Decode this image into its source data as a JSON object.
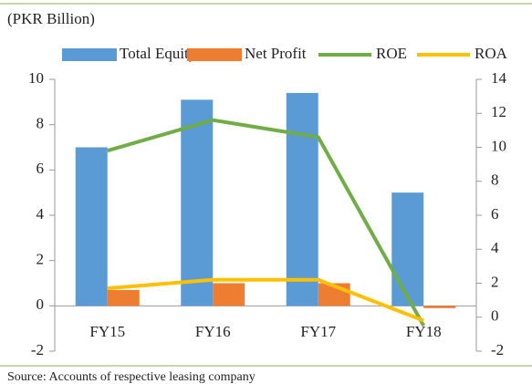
{
  "chart_data": {
    "type": "bar_line",
    "unit_label": "(PKR Billion)",
    "source": "Source:  Accounts  of respective  leasing  company",
    "categories": [
      "FY15",
      "FY16",
      "FY17",
      "FY18"
    ],
    "series": [
      {
        "name": "Total Equity",
        "type": "bar",
        "color": "#5b9bd5",
        "values": [
          7.0,
          9.1,
          9.4,
          5.0
        ]
      },
      {
        "name": "Net Profit",
        "type": "bar",
        "color": "#ed7d31",
        "values": [
          0.7,
          1.0,
          1.0,
          -0.1
        ]
      },
      {
        "name": "ROE",
        "type": "line",
        "axis": "y2",
        "color": "#70ad47",
        "values": [
          9.8,
          11.6,
          10.6,
          -0.5
        ]
      },
      {
        "name": "ROA",
        "type": "line",
        "axis": "y2",
        "color": "#ffc000",
        "values": [
          1.7,
          2.2,
          2.2,
          -0.2
        ]
      }
    ],
    "ylim": [
      -2,
      10
    ],
    "yticks": [
      -2,
      0,
      2,
      4,
      6,
      8,
      10
    ],
    "y2lim": [
      -2,
      14
    ],
    "y2ticks": [
      -2,
      0,
      2,
      4,
      6,
      8,
      10,
      12,
      14
    ]
  }
}
